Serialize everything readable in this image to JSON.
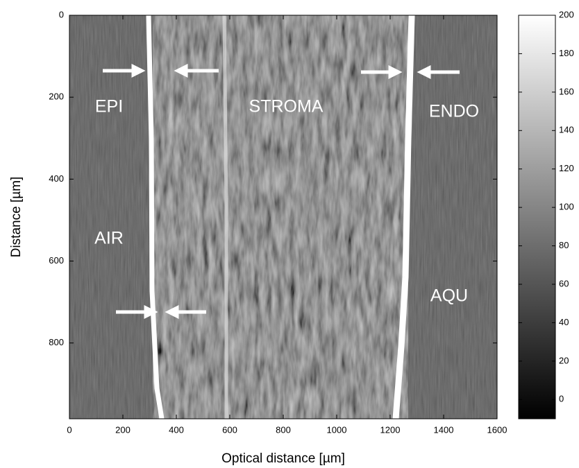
{
  "chart_data": {
    "type": "image",
    "xlabel": "Optical distance [µm]",
    "ylabel": "Distance [µm]",
    "xlim": [
      0,
      1600
    ],
    "xticks": [
      0,
      200,
      400,
      600,
      800,
      1000,
      1200,
      1400,
      1600
    ],
    "ylim": [
      0,
      985
    ],
    "y_reversed": true,
    "yticks": [
      0,
      200,
      400,
      600,
      800
    ],
    "colorbar": {
      "colormap": "gray",
      "clim": [
        -10,
        200
      ],
      "ticks": [
        0,
        20,
        40,
        60,
        80,
        100,
        120,
        140,
        160,
        180,
        200
      ]
    },
    "annotations": [
      "EPI",
      "STROMA",
      "ENDO",
      "AIR",
      "AQU"
    ]
  }
}
